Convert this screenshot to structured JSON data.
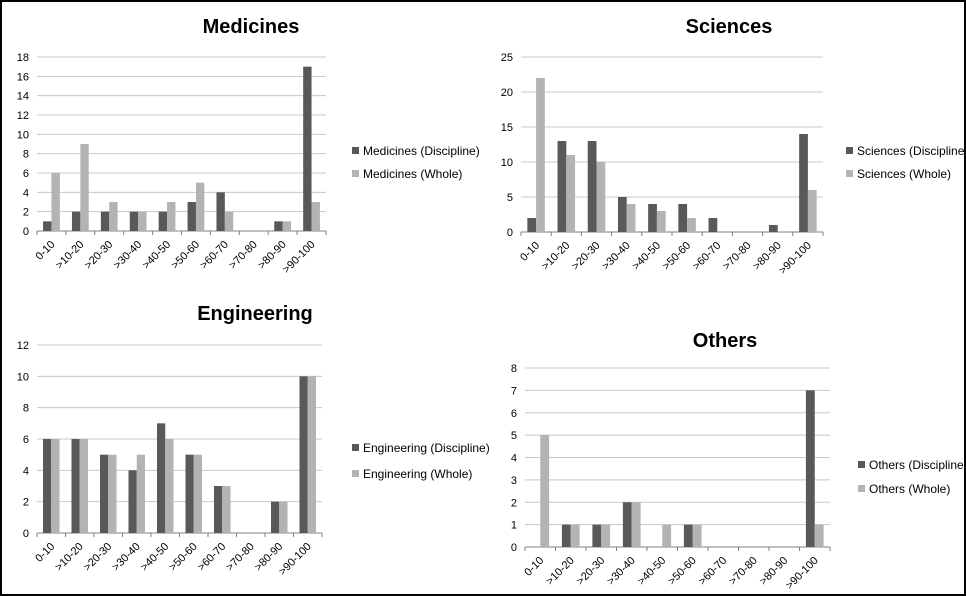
{
  "palette": {
    "discipline": "#595959",
    "whole": "#b3b3b3",
    "grid": "#c8c8c8"
  },
  "chart_data": [
    {
      "type": "bar",
      "title": "Medicines",
      "categories": [
        "0-10",
        ">10-20",
        ">20-30",
        ">30-40",
        ">40-50",
        ">50-60",
        ">60-70",
        ">70-80",
        ">80-90",
        ">90-100"
      ],
      "series": [
        {
          "name": "Medicines (Discipline)",
          "values": [
            1,
            2,
            2,
            2,
            2,
            3,
            4,
            0,
            1,
            17
          ]
        },
        {
          "name": "Medicines (Whole)",
          "values": [
            6,
            9,
            3,
            2,
            3,
            5,
            2,
            0,
            1,
            3
          ]
        }
      ],
      "ylim": [
        0,
        18
      ],
      "yticks": [
        0,
        2,
        4,
        6,
        8,
        10,
        12,
        14,
        16,
        18
      ],
      "grid": true,
      "legend": "right"
    },
    {
      "type": "bar",
      "title": "Sciences",
      "categories": [
        "0-10",
        ">10-20",
        ">20-30",
        ">30-40",
        ">40-50",
        ">50-60",
        ">60-70",
        ">70-80",
        ">80-90",
        ">90-100"
      ],
      "series": [
        {
          "name": "Sciences (Discipline)",
          "values": [
            2,
            13,
            13,
            5,
            4,
            4,
            2,
            0,
            1,
            14
          ]
        },
        {
          "name": "Sciences (Whole)",
          "values": [
            22,
            11,
            10,
            4,
            3,
            2,
            0,
            0,
            0,
            6
          ]
        }
      ],
      "ylim": [
        0,
        25
      ],
      "yticks": [
        0,
        5,
        10,
        15,
        20,
        25
      ],
      "grid": true,
      "legend": "right"
    },
    {
      "type": "bar",
      "title": "Engineering",
      "categories": [
        "0-10",
        ">10-20",
        ">20-30",
        ">30-40",
        ">40-50",
        ">50-60",
        ">60-70",
        ">70-80",
        ">80-90",
        ">90-100"
      ],
      "series": [
        {
          "name": "Engineering (Discipline)",
          "values": [
            6,
            6,
            5,
            4,
            7,
            5,
            3,
            0,
            2,
            10
          ]
        },
        {
          "name": "Engineering (Whole)",
          "values": [
            6,
            6,
            5,
            5,
            6,
            5,
            3,
            0,
            2,
            10
          ]
        }
      ],
      "ylim": [
        0,
        12
      ],
      "yticks": [
        0,
        2,
        4,
        6,
        8,
        10,
        12
      ],
      "grid": true,
      "legend": "right"
    },
    {
      "type": "bar",
      "title": "Others",
      "categories": [
        "0-10",
        ">10-20",
        ">20-30",
        ">30-40",
        ">40-50",
        ">50-60",
        ">60-70",
        ">70-80",
        ">80-90",
        ">90-100"
      ],
      "series": [
        {
          "name": "Others (Discipline)",
          "values": [
            0,
            1,
            1,
            2,
            0,
            1,
            0,
            0,
            0,
            7
          ]
        },
        {
          "name": "Others (Whole)",
          "values": [
            5,
            1,
            1,
            2,
            1,
            1,
            0,
            0,
            0,
            1
          ]
        }
      ],
      "ylim": [
        0,
        8
      ],
      "yticks": [
        0,
        1,
        2,
        3,
        4,
        5,
        6,
        7,
        8
      ],
      "grid": true,
      "legend": "right"
    }
  ]
}
